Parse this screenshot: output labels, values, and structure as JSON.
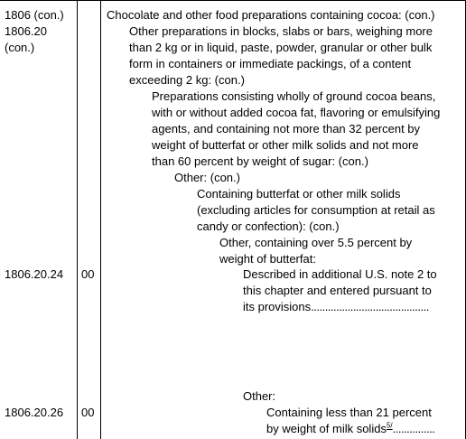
{
  "headings": {
    "code_1": "1806 (con.)",
    "code_2": "1806.20",
    "code_3": "(con.)"
  },
  "rows": [
    {
      "heading": "1806.20.24",
      "suffix": "00"
    },
    {
      "heading": "1806.20.26",
      "suffix": "00"
    }
  ],
  "description": {
    "l1": "Chocolate and other food preparations containing cocoa: (con.)",
    "l2_a": "Other preparations in blocks, slabs or bars, weighing more",
    "l2_b": "than 2 kg or in liquid, paste, powder, granular or other bulk",
    "l2_c": "form in containers or immediate packings, of a content",
    "l2_d": "exceeding 2 kg: (con.)",
    "l3_a": "Preparations consisting wholly of ground cocoa beans,",
    "l3_b": "with or without added cocoa fat, flavoring or emulsifying",
    "l3_c": "agents, and containing not more than 32 percent by",
    "l3_d": "weight of butterfat or other milk solids and not more",
    "l3_e": "than 60 percent by weight of sugar: (con.)",
    "l4": "Other: (con.)",
    "l5_a": "Containing butterfat or other milk solids",
    "l5_b": "(excluding articles for consumption at retail as",
    "l5_c": "candy or confection): (con.)",
    "l6_a": "Other, containing over 5.5 percent by",
    "l6_b": "weight of butterfat:",
    "l7_a": "Described in additional U.S. note 2 to",
    "l7_b": "this chapter and entered pursuant to",
    "l7_c": "its provisions",
    "l7_dots": "..........................................",
    "l8": "Other:",
    "l9_a": "Containing less than 21 percent",
    "l9_b": "by weight of milk solids",
    "l9_note": "5/",
    "l9_dots": "..............."
  }
}
